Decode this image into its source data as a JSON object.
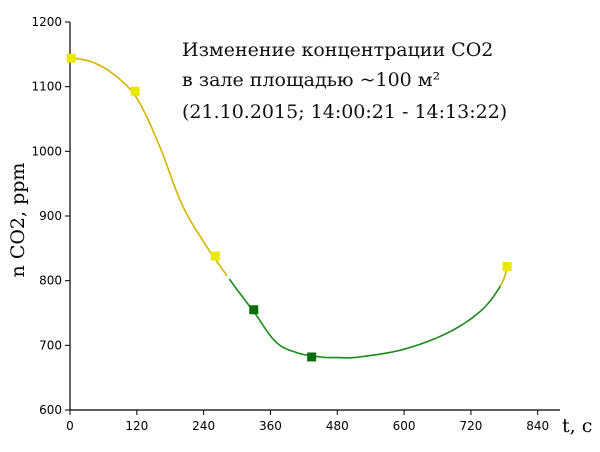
{
  "chart_data": {
    "type": "scatter",
    "title_lines": [
      "Изменение концентрации CO2",
      "в зале площадью ~100 м²",
      "(21.10.2015; 14:00:21 - 14:13:22)"
    ],
    "xlabel": "t, c",
    "ylabel": "n CO2, ppm",
    "xlim": [
      0,
      880
    ],
    "ylim": [
      600,
      1200
    ],
    "x_ticks": [
      0,
      120,
      240,
      360,
      480,
      600,
      720,
      840
    ],
    "y_ticks": [
      600,
      700,
      800,
      900,
      1000,
      1100,
      1200
    ],
    "grid": false,
    "colors": {
      "yellow": "#e8e800",
      "gold": "#d4b400",
      "green": "#1a8a1a",
      "dark_green": "#0a6e0a"
    },
    "series": [
      {
        "marker": "square",
        "marker_color": "yellow",
        "points": [
          {
            "x": 2,
            "y": 1144
          },
          {
            "x": 117,
            "y": 1093
          },
          {
            "x": 261,
            "y": 838
          },
          {
            "x": 785,
            "y": 822
          }
        ]
      },
      {
        "marker": "square",
        "marker_color": "dark_green",
        "points": [
          {
            "x": 330,
            "y": 755
          },
          {
            "x": 434,
            "y": 682
          }
        ]
      }
    ],
    "fit_curve": {
      "points": [
        {
          "x": 0,
          "y": 1145
        },
        {
          "x": 40,
          "y": 1138
        },
        {
          "x": 80,
          "y": 1118
        },
        {
          "x": 120,
          "y": 1082
        },
        {
          "x": 160,
          "y": 1010
        },
        {
          "x": 200,
          "y": 920
        },
        {
          "x": 240,
          "y": 860
        },
        {
          "x": 290,
          "y": 798
        },
        {
          "x": 330,
          "y": 752
        },
        {
          "x": 370,
          "y": 705
        },
        {
          "x": 410,
          "y": 688
        },
        {
          "x": 450,
          "y": 682
        },
        {
          "x": 480,
          "y": 681
        },
        {
          "x": 520,
          "y": 682
        },
        {
          "x": 600,
          "y": 694
        },
        {
          "x": 680,
          "y": 720
        },
        {
          "x": 740,
          "y": 755
        },
        {
          "x": 775,
          "y": 795
        },
        {
          "x": 785,
          "y": 822
        }
      ],
      "segments": [
        {
          "from": 0,
          "to": 285,
          "color": "gold"
        },
        {
          "from": 285,
          "to": 773,
          "color": "green"
        },
        {
          "from": 773,
          "to": 785,
          "color": "gold"
        }
      ]
    }
  }
}
